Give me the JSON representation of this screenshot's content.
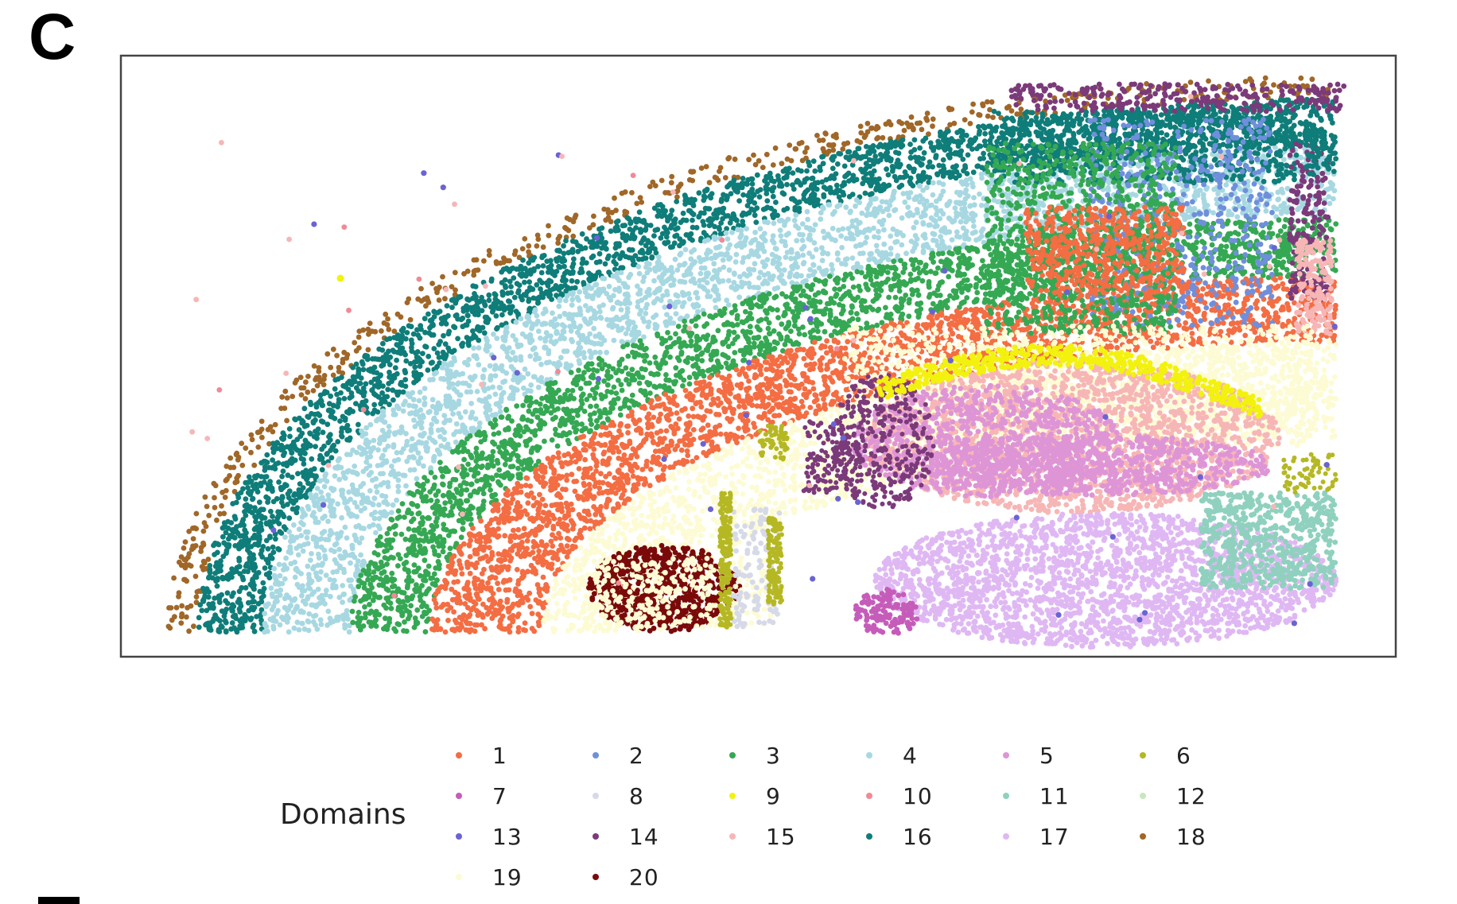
{
  "panel_label": "C",
  "chart_data": {
    "type": "scatter",
    "title": "",
    "xlabel": "",
    "ylabel": "",
    "grid": false,
    "axes_ticks": false,
    "legend_placement": "bottom",
    "legend": {
      "title": "Domains",
      "columns": 6,
      "entries": [
        {
          "label": "1",
          "color": "#f46d43"
        },
        {
          "label": "2",
          "color": "#6f8fdc"
        },
        {
          "label": "3",
          "color": "#35a853"
        },
        {
          "label": "4",
          "color": "#a7d8e2"
        },
        {
          "label": "5",
          "color": "#de95d6"
        },
        {
          "label": "6",
          "color": "#b5b823"
        },
        {
          "label": "7",
          "color": "#c65cba"
        },
        {
          "label": "8",
          "color": "#d6d9e8"
        },
        {
          "label": "9",
          "color": "#f2f20e"
        },
        {
          "label": "10",
          "color": "#f08a96"
        },
        {
          "label": "11",
          "color": "#8fd1be"
        },
        {
          "label": "12",
          "color": "#c9e6bd"
        },
        {
          "label": "13",
          "color": "#6a63d4"
        },
        {
          "label": "14",
          "color": "#7b3a7a"
        },
        {
          "label": "15",
          "color": "#f7b6b6"
        },
        {
          "label": "16",
          "color": "#0f7d79"
        },
        {
          "label": "17",
          "color": "#dfb8f3"
        },
        {
          "label": "18",
          "color": "#a06728"
        },
        {
          "label": "19",
          "color": "#fdfbd3"
        },
        {
          "label": "20",
          "color": "#7a0a0a"
        }
      ]
    },
    "series": [
      {
        "name": "18",
        "color": "#a06728",
        "region": "outer cortical rim"
      },
      {
        "name": "16",
        "color": "#0f7d79",
        "region": "outer cortical band"
      },
      {
        "name": "4",
        "color": "#a7d8e2",
        "region": "upper cortical band"
      },
      {
        "name": "3",
        "color": "#35a853",
        "region": "middle cortical band"
      },
      {
        "name": "1",
        "color": "#f46d43",
        "region": "deep cortical band"
      },
      {
        "name": "19",
        "color": "#fdfbd3",
        "region": "white matter arc"
      },
      {
        "name": "9",
        "color": "#f2f20e",
        "region": "dentate arc"
      },
      {
        "name": "15",
        "color": "#f7b6b6",
        "region": "hippocampus interior"
      },
      {
        "name": "5",
        "color": "#de95d6",
        "region": "hippocampal layer"
      },
      {
        "name": "14",
        "color": "#7b3a7a",
        "region": "hippocampal clusters"
      },
      {
        "name": "17",
        "color": "#dfb8f3",
        "region": "thalamus"
      },
      {
        "name": "20",
        "color": "#7a0a0a",
        "region": "striatal patch"
      },
      {
        "name": "11",
        "color": "#8fd1be",
        "region": "lower right patch"
      },
      {
        "name": "2",
        "color": "#6f8fdc",
        "region": "upper right band"
      },
      {
        "name": "6",
        "color": "#b5b823",
        "region": "thin tracts"
      },
      {
        "name": "7",
        "color": "#c65cba",
        "region": "small lower patch"
      },
      {
        "name": "8",
        "color": "#d6d9e8",
        "region": "thin tracts"
      },
      {
        "name": "13",
        "color": "#6a63d4",
        "region": "scattered specks"
      }
    ]
  }
}
